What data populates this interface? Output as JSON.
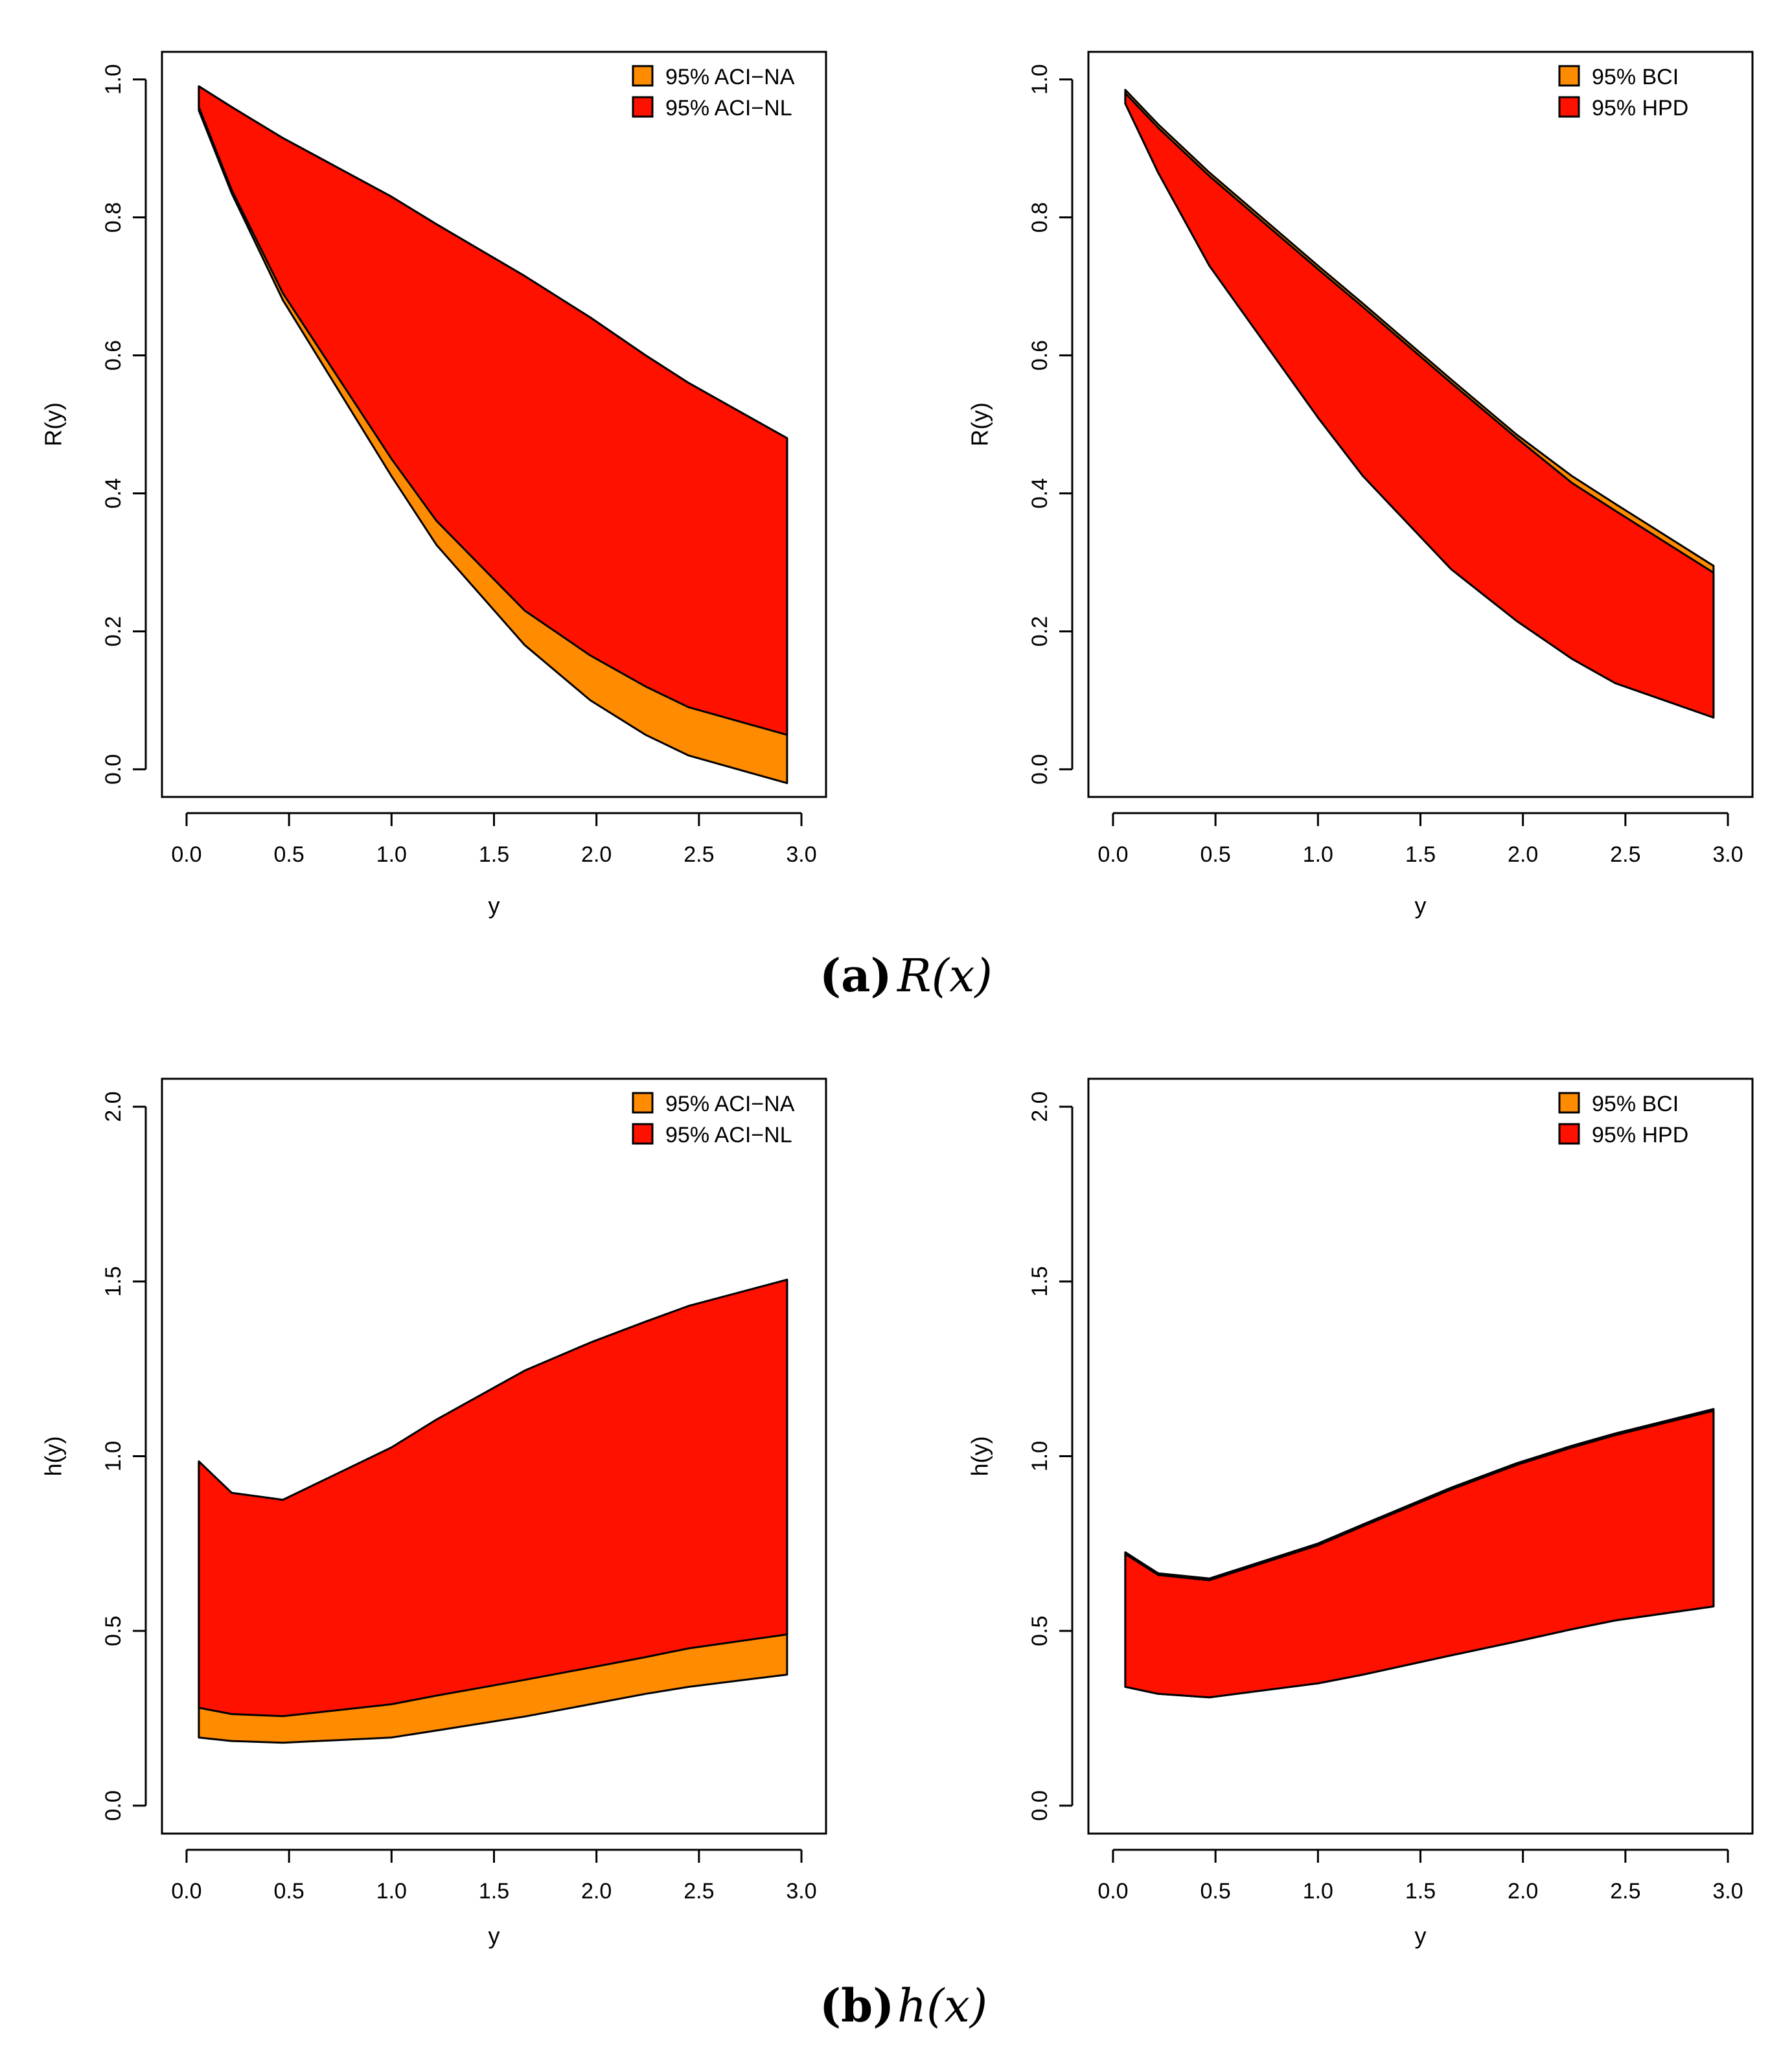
{
  "captions": {
    "a": {
      "label": "(a)",
      "expr": "R(x)"
    },
    "b": {
      "label": "(b)",
      "expr": "h(x)"
    }
  },
  "colors": {
    "orange": "#FF8C00",
    "red": "#FF1100"
  },
  "chart_data": [
    {
      "type": "area",
      "xlabel": "y",
      "ylabel": "R(y)",
      "xlim": [
        0,
        3
      ],
      "ylim": [
        0,
        1
      ],
      "xticks": [
        0.0,
        0.5,
        1.0,
        1.5,
        2.0,
        2.5,
        3.0
      ],
      "xtick_labels": [
        "0.0",
        "0.5",
        "1.0",
        "1.5",
        "2.0",
        "2.5",
        "3.0"
      ],
      "yticks": [
        0.0,
        0.2,
        0.4,
        0.6,
        0.8,
        1.0
      ],
      "ytick_labels": [
        "0.0",
        "0.2",
        "0.4",
        "0.6",
        "0.8",
        "1.0"
      ],
      "legend": {
        "position": "top-right",
        "entries": [
          {
            "label": "95% ACI−NA",
            "color": "#FF8C00"
          },
          {
            "label": "95% ACI−NL",
            "color": "#FF1100"
          }
        ]
      },
      "x": [
        0.06,
        0.22,
        0.47,
        1.0,
        1.22,
        1.65,
        1.97,
        2.24,
        2.45,
        2.93
      ],
      "series": [
        {
          "name": "95% ACI−NA",
          "color": "#FF8C00",
          "lower": [
            0.955,
            0.835,
            0.68,
            0.425,
            0.325,
            0.18,
            0.1,
            0.05,
            0.02,
            -0.02
          ],
          "upper": [
            0.99,
            0.96,
            0.915,
            0.83,
            0.79,
            0.715,
            0.655,
            0.6,
            0.56,
            0.48
          ]
        },
        {
          "name": "95% ACI−NL",
          "color": "#FF1100",
          "lower": [
            0.96,
            0.84,
            0.69,
            0.45,
            0.36,
            0.23,
            0.165,
            0.12,
            0.09,
            0.05
          ],
          "upper": [
            0.99,
            0.96,
            0.915,
            0.83,
            0.79,
            0.715,
            0.655,
            0.6,
            0.56,
            0.48
          ]
        }
      ]
    },
    {
      "type": "area",
      "xlabel": "y",
      "ylabel": "R(y)",
      "xlim": [
        0,
        3
      ],
      "ylim": [
        0,
        1
      ],
      "xticks": [
        0.0,
        0.5,
        1.0,
        1.5,
        2.0,
        2.5,
        3.0
      ],
      "xtick_labels": [
        "0.0",
        "0.5",
        "1.0",
        "1.5",
        "2.0",
        "2.5",
        "3.0"
      ],
      "yticks": [
        0.0,
        0.2,
        0.4,
        0.6,
        0.8,
        1.0
      ],
      "ytick_labels": [
        "0.0",
        "0.2",
        "0.4",
        "0.6",
        "0.8",
        "1.0"
      ],
      "legend": {
        "position": "top-right",
        "entries": [
          {
            "label": "95% BCI",
            "color": "#FF8C00"
          },
          {
            "label": "95% HPD",
            "color": "#FF1100"
          }
        ]
      },
      "x": [
        0.06,
        0.22,
        0.47,
        1.0,
        1.22,
        1.65,
        1.97,
        2.24,
        2.45,
        2.93
      ],
      "series": [
        {
          "name": "95% BCI",
          "color": "#FF8C00",
          "lower": [
            0.965,
            0.865,
            0.73,
            0.51,
            0.425,
            0.29,
            0.215,
            0.16,
            0.125,
            0.075
          ],
          "upper": [
            0.985,
            0.935,
            0.865,
            0.73,
            0.675,
            0.565,
            0.485,
            0.425,
            0.385,
            0.295
          ]
        },
        {
          "name": "95% HPD",
          "color": "#FF1100",
          "lower": [
            0.965,
            0.865,
            0.73,
            0.51,
            0.425,
            0.29,
            0.215,
            0.16,
            0.125,
            0.075
          ],
          "upper": [
            0.98,
            0.93,
            0.86,
            0.725,
            0.67,
            0.56,
            0.48,
            0.415,
            0.375,
            0.285
          ]
        }
      ]
    },
    {
      "type": "area",
      "xlabel": "y",
      "ylabel": "h(y)",
      "xlim": [
        0,
        3
      ],
      "ylim": [
        0,
        2
      ],
      "xticks": [
        0.0,
        0.5,
        1.0,
        1.5,
        2.0,
        2.5,
        3.0
      ],
      "xtick_labels": [
        "0.0",
        "0.5",
        "1.0",
        "1.5",
        "2.0",
        "2.5",
        "3.0"
      ],
      "yticks": [
        0.0,
        0.5,
        1.0,
        1.5,
        2.0
      ],
      "ytick_labels": [
        "0.0",
        "0.5",
        "1.0",
        "1.5",
        "2.0"
      ],
      "legend": {
        "position": "top-right",
        "entries": [
          {
            "label": "95% ACI−NA",
            "color": "#FF8C00"
          },
          {
            "label": "95% ACI−NL",
            "color": "#FF1100"
          }
        ]
      },
      "x": [
        0.06,
        0.22,
        0.47,
        1.0,
        1.22,
        1.65,
        1.97,
        2.24,
        2.45,
        2.93
      ],
      "series": [
        {
          "name": "95% ACI−NA",
          "color": "#FF8C00",
          "lower": [
            0.195,
            0.185,
            0.18,
            0.195,
            0.215,
            0.255,
            0.29,
            0.32,
            0.34,
            0.375
          ],
          "upper": [
            0.985,
            0.895,
            0.875,
            1.025,
            1.105,
            1.245,
            1.325,
            1.385,
            1.43,
            1.505
          ]
        },
        {
          "name": "95% ACI−NL",
          "color": "#FF1100",
          "lower": [
            0.28,
            0.262,
            0.256,
            0.29,
            0.315,
            0.36,
            0.395,
            0.425,
            0.45,
            0.49
          ],
          "upper": [
            0.985,
            0.895,
            0.875,
            1.025,
            1.105,
            1.245,
            1.325,
            1.385,
            1.43,
            1.505
          ]
        }
      ]
    },
    {
      "type": "area",
      "xlabel": "y",
      "ylabel": "h(y)",
      "xlim": [
        0,
        3
      ],
      "ylim": [
        0,
        2
      ],
      "xticks": [
        0.0,
        0.5,
        1.0,
        1.5,
        2.0,
        2.5,
        3.0
      ],
      "xtick_labels": [
        "0.0",
        "0.5",
        "1.0",
        "1.5",
        "2.0",
        "2.5",
        "3.0"
      ],
      "yticks": [
        0.0,
        0.5,
        1.0,
        1.5,
        2.0
      ],
      "ytick_labels": [
        "0.0",
        "0.5",
        "1.0",
        "1.5",
        "2.0"
      ],
      "legend": {
        "position": "top-right",
        "entries": [
          {
            "label": "95% BCI",
            "color": "#FF8C00"
          },
          {
            "label": "95% HPD",
            "color": "#FF1100"
          }
        ]
      },
      "x": [
        0.06,
        0.22,
        0.47,
        1.0,
        1.22,
        1.65,
        1.97,
        2.24,
        2.45,
        2.93
      ],
      "series": [
        {
          "name": "95% BCI",
          "color": "#FF8C00",
          "lower": [
            0.34,
            0.32,
            0.31,
            0.35,
            0.375,
            0.43,
            0.47,
            0.505,
            0.53,
            0.57
          ],
          "upper": [
            0.725,
            0.665,
            0.65,
            0.75,
            0.805,
            0.91,
            0.98,
            1.03,
            1.065,
            1.135
          ]
        },
        {
          "name": "95% HPD",
          "color": "#FF1100",
          "lower": [
            0.34,
            0.32,
            0.31,
            0.35,
            0.375,
            0.43,
            0.47,
            0.505,
            0.53,
            0.57
          ],
          "upper": [
            0.72,
            0.66,
            0.645,
            0.745,
            0.8,
            0.905,
            0.975,
            1.025,
            1.06,
            1.13
          ]
        }
      ]
    }
  ]
}
